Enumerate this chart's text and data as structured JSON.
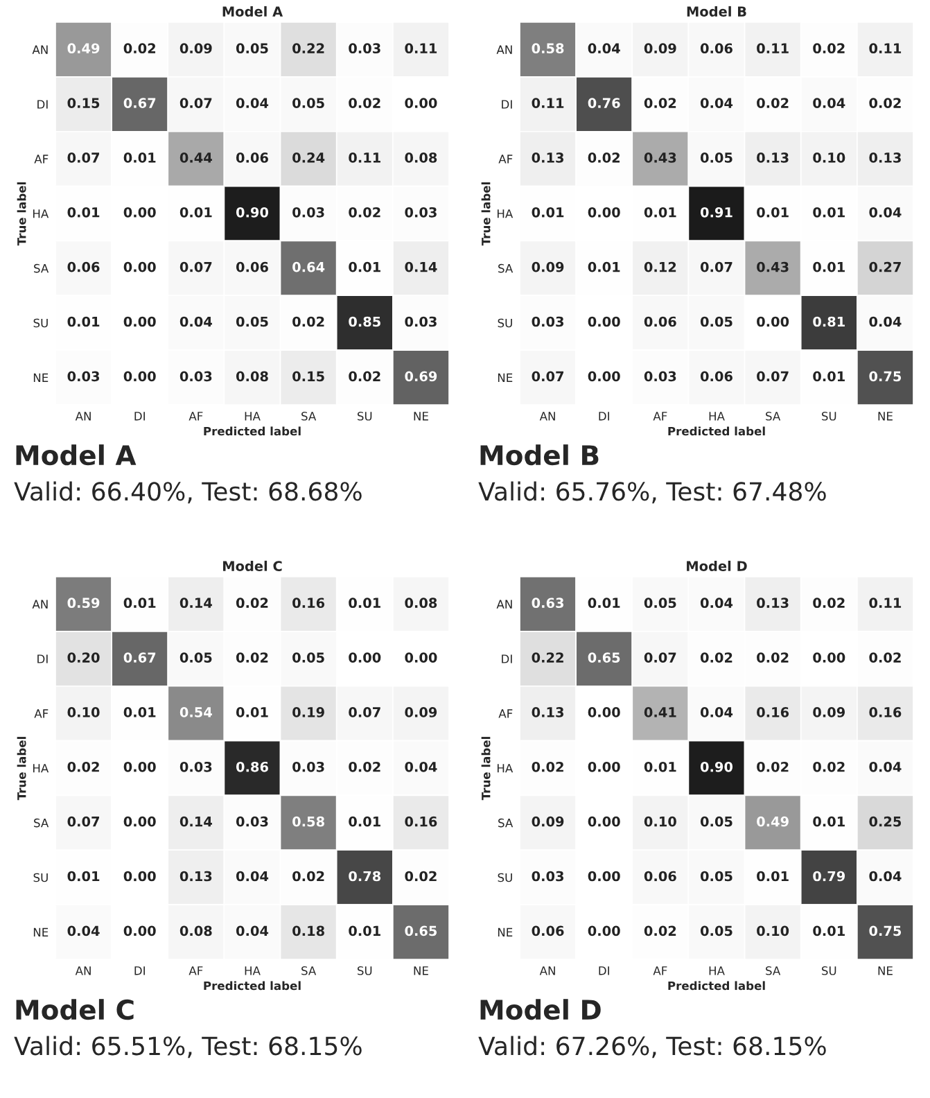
{
  "chart_data": [
    {
      "type": "heatmap",
      "title": "Model A",
      "xlabel": "Predicted label",
      "ylabel": "True label",
      "categories": [
        "AN",
        "DI",
        "AF",
        "HA",
        "SA",
        "SU",
        "NE"
      ],
      "y_categories": [
        "AN",
        "DI",
        "AF",
        "HA",
        "SA",
        "SU",
        "NE"
      ],
      "cells": [
        [
          0.49,
          0.02,
          0.09,
          0.05,
          0.22,
          0.03,
          0.11
        ],
        [
          0.15,
          0.67,
          0.07,
          0.04,
          0.05,
          0.02,
          0.0
        ],
        [
          0.07,
          0.01,
          0.44,
          0.06,
          0.24,
          0.11,
          0.08
        ],
        [
          0.01,
          0.0,
          0.01,
          0.9,
          0.03,
          0.02,
          0.03
        ],
        [
          0.06,
          0.0,
          0.07,
          0.06,
          0.64,
          0.01,
          0.14
        ],
        [
          0.01,
          0.0,
          0.04,
          0.05,
          0.02,
          0.85,
          0.03
        ],
        [
          0.03,
          0.0,
          0.03,
          0.08,
          0.15,
          0.02,
          0.69
        ]
      ],
      "cell_labels": [
        [
          "0.49",
          "0.02",
          "0.09",
          "0.05",
          "0.22",
          "0.03",
          "0.11"
        ],
        [
          "0.15",
          "0.67",
          "0.07",
          "0.04",
          "0.05",
          "0.02",
          "0.00"
        ],
        [
          "0.07",
          "0.01",
          "0.44",
          "0.06",
          "0.24",
          "0.11",
          "0.08"
        ],
        [
          "0.01",
          "0.00",
          "0.01",
          "0.90",
          "0.03",
          "0.02",
          "0.03"
        ],
        [
          "0.06",
          "0.00",
          "0.07",
          "0.06",
          "0.64",
          "0.01",
          "0.14"
        ],
        [
          "0.01",
          "0.00",
          "0.04",
          "0.05",
          "0.02",
          "0.85",
          "0.03"
        ],
        [
          "0.03",
          "0.00",
          "0.03",
          "0.08",
          "0.15",
          "0.02",
          "0.69"
        ]
      ],
      "annotations": [
        "Model A",
        "Valid: 66.40%, Test: 68.68%"
      ]
    },
    {
      "type": "heatmap",
      "title": "Model B",
      "xlabel": "Predicted label",
      "ylabel": "True label",
      "categories": [
        "AN",
        "DI",
        "AF",
        "HA",
        "SA",
        "SU",
        "NE"
      ],
      "y_categories": [
        "AN",
        "DI",
        "AF",
        "HA",
        "SA",
        "SU",
        "NE"
      ],
      "cells": [
        [
          0.58,
          0.04,
          0.09,
          0.06,
          0.11,
          0.02,
          0.11
        ],
        [
          0.11,
          0.76,
          0.02,
          0.04,
          0.02,
          0.04,
          0.02
        ],
        [
          0.13,
          0.02,
          0.43,
          0.05,
          0.13,
          0.1,
          0.13
        ],
        [
          0.01,
          0.0,
          0.01,
          0.91,
          0.01,
          0.01,
          0.04
        ],
        [
          0.09,
          0.01,
          0.12,
          0.07,
          0.43,
          0.01,
          0.27
        ],
        [
          0.03,
          0.0,
          0.06,
          0.05,
          0.0,
          0.81,
          0.04
        ],
        [
          0.07,
          0.0,
          0.03,
          0.06,
          0.07,
          0.01,
          0.75
        ]
      ],
      "cell_labels": [
        [
          "0.58",
          "0.04",
          "0.09",
          "0.06",
          "0.11",
          "0.02",
          "0.11"
        ],
        [
          "0.11",
          "0.76",
          "0.02",
          "0.04",
          "0.02",
          "0.04",
          "0.02"
        ],
        [
          "0.13",
          "0.02",
          "0.43",
          "0.05",
          "0.13",
          "0.10",
          "0.13"
        ],
        [
          "0.01",
          "0.00",
          "0.01",
          "0.91",
          "0.01",
          "0.01",
          "0.04"
        ],
        [
          "0.09",
          "0.01",
          "0.12",
          "0.07",
          "0.43",
          "0.01",
          "0.27"
        ],
        [
          "0.03",
          "0.00",
          "0.06",
          "0.05",
          "0.00",
          "0.81",
          "0.04"
        ],
        [
          "0.07",
          "0.00",
          "0.03",
          "0.06",
          "0.07",
          "0.01",
          "0.75"
        ]
      ],
      "annotations": [
        "Model B",
        "Valid: 65.76%, Test: 67.48%"
      ]
    },
    {
      "type": "heatmap",
      "title": "Model C",
      "xlabel": "Predicted label",
      "ylabel": "True label",
      "categories": [
        "AN",
        "DI",
        "AF",
        "HA",
        "SA",
        "SU",
        "NE"
      ],
      "y_categories": [
        "AN",
        "DI",
        "AF",
        "HA",
        "SA",
        "SU",
        "NE"
      ],
      "cells": [
        [
          0.59,
          0.01,
          0.14,
          0.02,
          0.16,
          0.01,
          0.08
        ],
        [
          0.2,
          0.67,
          0.05,
          0.02,
          0.05,
          0.0,
          0.0
        ],
        [
          0.1,
          0.01,
          0.54,
          0.01,
          0.19,
          0.07,
          0.09
        ],
        [
          0.02,
          0.0,
          0.03,
          0.86,
          0.03,
          0.02,
          0.04
        ],
        [
          0.07,
          0.0,
          0.14,
          0.03,
          0.58,
          0.01,
          0.16
        ],
        [
          0.01,
          0.0,
          0.13,
          0.04,
          0.02,
          0.78,
          0.02
        ],
        [
          0.04,
          0.0,
          0.08,
          0.04,
          0.18,
          0.01,
          0.65
        ]
      ],
      "cell_labels": [
        [
          "0.59",
          "0.01",
          "0.14",
          "0.02",
          "0.16",
          "0.01",
          "0.08"
        ],
        [
          "0.20",
          "0.67",
          "0.05",
          "0.02",
          "0.05",
          "0.00",
          "0.00"
        ],
        [
          "0.10",
          "0.01",
          "0.54",
          "0.01",
          "0.19",
          "0.07",
          "0.09"
        ],
        [
          "0.02",
          "0.00",
          "0.03",
          "0.86",
          "0.03",
          "0.02",
          "0.04"
        ],
        [
          "0.07",
          "0.00",
          "0.14",
          "0.03",
          "0.58",
          "0.01",
          "0.16"
        ],
        [
          "0.01",
          "0.00",
          "0.13",
          "0.04",
          "0.02",
          "0.78",
          "0.02"
        ],
        [
          "0.04",
          "0.00",
          "0.08",
          "0.04",
          "0.18",
          "0.01",
          "0.65"
        ]
      ],
      "annotations": [
        "Model C",
        "Valid: 65.51%, Test: 68.15%"
      ]
    },
    {
      "type": "heatmap",
      "title": "Model D",
      "xlabel": "Predicted label",
      "ylabel": "True label",
      "categories": [
        "AN",
        "DI",
        "AF",
        "HA",
        "SA",
        "SU",
        "NE"
      ],
      "y_categories": [
        "AN",
        "DI",
        "AF",
        "HA",
        "SA",
        "SU",
        "NE"
      ],
      "cells": [
        [
          0.63,
          0.01,
          0.05,
          0.04,
          0.13,
          0.02,
          0.11
        ],
        [
          0.22,
          0.65,
          0.07,
          0.02,
          0.02,
          0.0,
          0.02
        ],
        [
          0.13,
          0.0,
          0.41,
          0.04,
          0.16,
          0.09,
          0.16
        ],
        [
          0.02,
          0.0,
          0.01,
          0.9,
          0.02,
          0.02,
          0.04
        ],
        [
          0.09,
          0.0,
          0.1,
          0.05,
          0.49,
          0.01,
          0.25
        ],
        [
          0.03,
          0.0,
          0.06,
          0.05,
          0.01,
          0.79,
          0.04
        ],
        [
          0.06,
          0.0,
          0.02,
          0.05,
          0.1,
          0.01,
          0.75
        ]
      ],
      "cell_labels": [
        [
          "0.63",
          "0.01",
          "0.05",
          "0.04",
          "0.13",
          "0.02",
          "0.11"
        ],
        [
          "0.22",
          "0.65",
          "0.07",
          "0.02",
          "0.02",
          "0.00",
          "0.02"
        ],
        [
          "0.13",
          "0.00",
          "0.41",
          "0.04",
          "0.16",
          "0.09",
          "0.16"
        ],
        [
          "0.02",
          "0.00",
          "0.01",
          "0.90",
          "0.02",
          "0.02",
          "0.04"
        ],
        [
          "0.09",
          "0.00",
          "0.10",
          "0.05",
          "0.49",
          "0.01",
          "0.25"
        ],
        [
          "0.03",
          "0.00",
          "0.06",
          "0.05",
          "0.01",
          "0.79",
          "0.04"
        ],
        [
          "0.06",
          "0.00",
          "0.02",
          "0.05",
          "0.10",
          "0.01",
          "0.75"
        ]
      ],
      "annotations": [
        "Model D",
        "Valid: 67.26%, Test: 68.15%"
      ]
    }
  ]
}
